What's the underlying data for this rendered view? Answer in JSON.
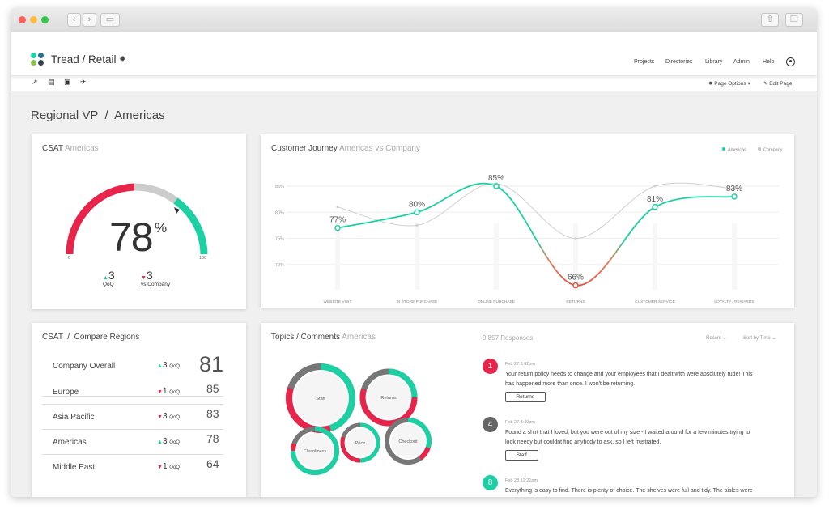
{
  "app": {
    "title": "Tread / Retail",
    "nav": [
      "Projects",
      "Directories",
      "Library",
      "Admin",
      "Help"
    ],
    "toolbar": {
      "page_options": "Page Options",
      "edit_page": "Edit Page"
    }
  },
  "page_title": "Regional VP  /  Americas",
  "colors": {
    "teal": "#1dd0a4",
    "red": "#e8244a",
    "gray": "#bdbdbd",
    "dark": "#666666"
  },
  "csat": {
    "title": "CSAT",
    "subtitle": "Americas",
    "score": 78,
    "percent_sign": "%",
    "gauge_min": "0",
    "gauge_max": "100",
    "qoq_value": "3",
    "qoq_label": "QoQ",
    "vs_value": "3",
    "vs_label": "vs Company"
  },
  "journey": {
    "title": "Customer Journey",
    "subtitle": "Americas vs Company",
    "legend": [
      "Americas",
      "Company"
    ]
  },
  "chart_data": {
    "type": "line",
    "categories": [
      "WEBSITE VISIT",
      "IN STORE PURCHASE",
      "ONLINE PURCHASE",
      "RETURNS",
      "CUSTOMER SERVICE",
      "LOYALTY / REWARDS"
    ],
    "y_ticks": [
      "85%",
      "80%",
      "75%",
      "70%"
    ],
    "ylim": [
      64,
      87
    ],
    "grid": true,
    "legend_position": "top-right",
    "series": [
      {
        "name": "Americas",
        "values": [
          77,
          80,
          85,
          66,
          81,
          83
        ],
        "labels": [
          "77%",
          "80%",
          "85%",
          "66%",
          "81%",
          "83%"
        ]
      },
      {
        "name": "Company",
        "values": [
          81,
          77.5,
          85.5,
          75,
          85,
          84.5
        ]
      }
    ]
  },
  "compare": {
    "title": "CSAT  /  Compare Regions",
    "qoq_label": "QoQ",
    "rows": [
      {
        "name": "Company Overall",
        "dir": "up",
        "delta": "3",
        "score": "81"
      },
      {
        "name": "Europe",
        "dir": "down",
        "delta": "1",
        "score": "85"
      },
      {
        "name": "Asia Pacific",
        "dir": "down",
        "delta": "3",
        "score": "83"
      },
      {
        "name": "Americas",
        "dir": "up",
        "delta": "3",
        "score": "78"
      },
      {
        "name": "Middle East",
        "dir": "down",
        "delta": "1",
        "score": "64"
      }
    ]
  },
  "topics": {
    "title": "Topics / Comments",
    "subtitle": "Americas",
    "bubbles": [
      {
        "label": "Staff",
        "positive": 0.45,
        "negative": 0.35
      },
      {
        "label": "Returns",
        "positive": 0.25,
        "negative": 0.55
      },
      {
        "label": "Price",
        "positive": 0.5,
        "negative": 0.3
      },
      {
        "label": "Cleanliness",
        "positive": 0.75,
        "negative": 0.05
      },
      {
        "label": "Checkout",
        "positive": 0.3,
        "negative": 0.1
      }
    ],
    "responses": "9,857 Responses",
    "sort_recent": "Recent",
    "sort_time": "Sort by Time"
  },
  "comments": [
    {
      "num": "1",
      "color": "#e8244a",
      "date": "Feb 27   3:02pm",
      "lines": [
        "Your return policy needs to change and your employees that I dealt with were absolutely rude!  This",
        "has happened more than once.  I won't be returning."
      ],
      "tag": "Returns"
    },
    {
      "num": "4",
      "color": "#666666",
      "date": "Feb 27   3:49pm",
      "lines": [
        "Found a shirt that I loved, but you were out of my size - I waited around for a few minutes trying to",
        "look needy but couldnt find anybody to ask, so I left frustrated."
      ],
      "tag": "Staff"
    },
    {
      "num": "8",
      "color": "#1dd0a4",
      "date": "Feb 28   12:21pm",
      "lines": [
        "Everything is easy to find. There is plenty of choice. The shelves were full and tidy. The aisles were"
      ],
      "tag": ""
    }
  ]
}
